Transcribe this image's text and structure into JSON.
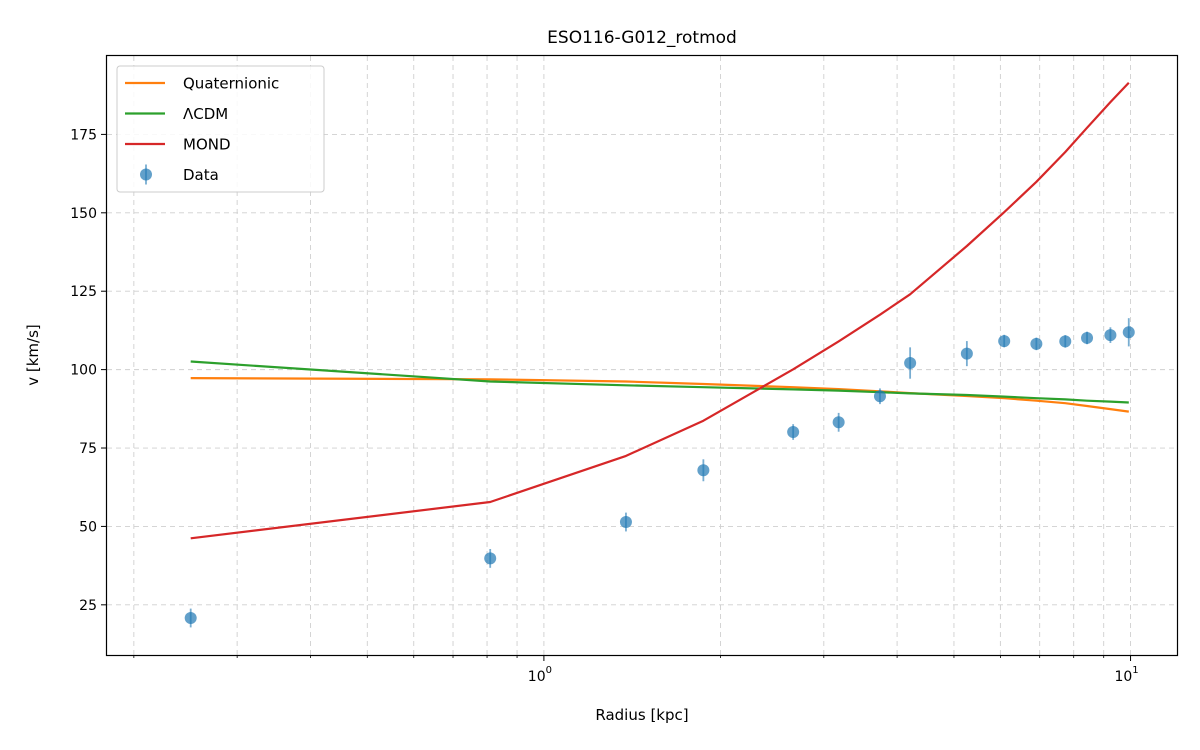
{
  "chart_data": {
    "type": "line",
    "title": "ESO116-G012_rotmod",
    "xlabel": "Radius [kpc]",
    "ylabel": "v [km/s]",
    "xscale": "log",
    "xlim": [
      0.18,
      12.0
    ],
    "ylim": [
      9,
      200
    ],
    "grid": true,
    "legend_position": "top-left",
    "x_ticks": [
      {
        "value": 1,
        "base": "10",
        "exp": "0"
      },
      {
        "value": 10,
        "base": "10",
        "exp": "1"
      }
    ],
    "y_ticks": [
      25,
      50,
      75,
      100,
      125,
      150,
      175
    ],
    "series": [
      {
        "name": "Quaternionic",
        "kind": "line",
        "color": "#ff7f0e",
        "x": [
          0.25,
          0.81,
          1.38,
          1.87,
          2.66,
          3.18,
          3.74,
          4.21,
          5.26,
          6.09,
          6.91,
          7.74,
          8.43,
          9.24,
          9.93
        ],
        "y": [
          97.3,
          96.9,
          96.2,
          95.4,
          94.4,
          93.8,
          93.1,
          92.5,
          91.6,
          90.9,
          90.1,
          89.3,
          88.4,
          87.4,
          86.6
        ]
      },
      {
        "name": "ΛCDM",
        "kind": "line",
        "color": "#2ca02c",
        "x": [
          0.25,
          0.81,
          1.38,
          1.87,
          2.66,
          3.18,
          3.74,
          4.21,
          5.26,
          6.09,
          6.91,
          7.74,
          8.43,
          9.24,
          9.93
        ],
        "y": [
          102.6,
          96.2,
          95.0,
          94.4,
          93.7,
          93.3,
          92.8,
          92.4,
          91.9,
          91.4,
          90.9,
          90.5,
          90.1,
          89.8,
          89.5
        ]
      },
      {
        "name": "MOND",
        "kind": "line",
        "color": "#d62728",
        "x": [
          0.25,
          0.81,
          1.38,
          1.87,
          2.66,
          3.18,
          3.74,
          4.21,
          5.26,
          6.09,
          6.91,
          7.74,
          8.43,
          9.24,
          9.93
        ],
        "y": [
          46.2,
          57.8,
          72.5,
          83.7,
          100.1,
          109.0,
          117.5,
          124.0,
          139.4,
          150.2,
          159.9,
          169.4,
          177.1,
          185.3,
          191.5
        ]
      },
      {
        "name": "Data",
        "kind": "errorbar",
        "color": "#1f77b4",
        "x": [
          0.25,
          0.81,
          1.38,
          1.87,
          2.66,
          3.18,
          3.74,
          4.21,
          5.26,
          6.09,
          6.91,
          7.74,
          8.43,
          9.24,
          9.93
        ],
        "y": [
          20.8,
          39.8,
          51.4,
          67.9,
          80.1,
          83.2,
          91.5,
          102.1,
          105.1,
          109.1,
          108.2,
          109.0,
          110.1,
          111.0,
          111.9
        ],
        "yerr": [
          3.0,
          3.0,
          3.0,
          3.5,
          2.5,
          3.0,
          2.5,
          5.0,
          4.0,
          2.0,
          2.0,
          2.0,
          2.0,
          2.5,
          4.5
        ]
      }
    ]
  }
}
